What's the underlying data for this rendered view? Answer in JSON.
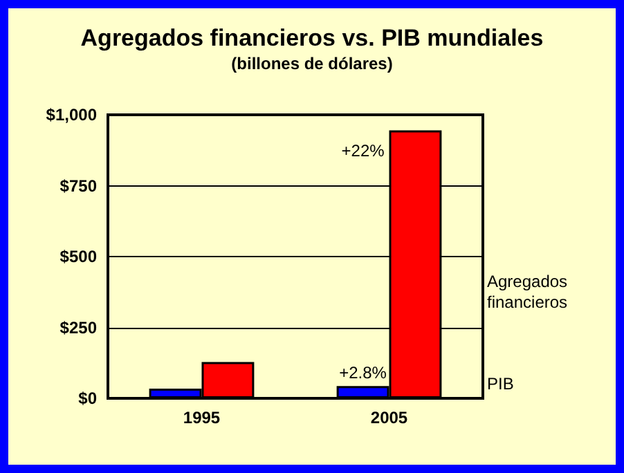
{
  "chart_data": {
    "type": "bar",
    "title": "Agregados financieros vs. PIB mundiales",
    "subtitle": "(billones de dólares)",
    "categories": [
      "1995",
      "2005"
    ],
    "series": [
      {
        "name": "PIB",
        "color": "#0000ff",
        "values": [
          34,
          43
        ]
      },
      {
        "name": "Agregados financieros",
        "color": "#ff0000",
        "values": [
          128,
          945
        ]
      }
    ],
    "ylim": [
      0,
      1000
    ],
    "yticks": [
      {
        "value": 0,
        "label": "$0"
      },
      {
        "value": 250,
        "label": "$250"
      },
      {
        "value": 500,
        "label": "$500"
      },
      {
        "value": 750,
        "label": "$750"
      },
      {
        "value": 1000,
        "label": "$1,000"
      }
    ],
    "grid": "y",
    "legend": "right",
    "annotations": [
      {
        "text": "+22%",
        "x": "2005",
        "y": 873
      },
      {
        "text": "+2.8%",
        "x": "2005",
        "y": 91
      }
    ]
  }
}
